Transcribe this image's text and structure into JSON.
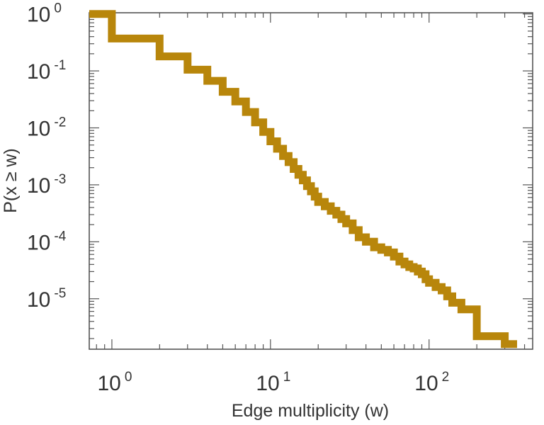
{
  "chart_data": {
    "type": "line",
    "style": "step",
    "xscale": "log",
    "yscale": "log",
    "xlim": [
      0.72,
      450
    ],
    "ylim": [
      1.3e-06,
      1.05
    ],
    "xlabel": "Edge multiplicity (w)",
    "ylabel": "P(x ≥ w)",
    "grid": false,
    "colors": {
      "series": "#b8860b",
      "axis": "#555555",
      "text": "#333333"
    },
    "x_ticks": [
      {
        "value": 1,
        "base": "10",
        "exp": "0"
      },
      {
        "value": 10,
        "base": "10",
        "exp": "1"
      },
      {
        "value": 100,
        "base": "10",
        "exp": "2"
      }
    ],
    "y_ticks": [
      {
        "value": 1,
        "base": "10",
        "exp": "0"
      },
      {
        "value": 0.1,
        "base": "10",
        "exp": "-1"
      },
      {
        "value": 0.01,
        "base": "10",
        "exp": "-2"
      },
      {
        "value": 0.001,
        "base": "10",
        "exp": "-3"
      },
      {
        "value": 0.0001,
        "base": "10",
        "exp": "-4"
      },
      {
        "value": 1e-05,
        "base": "10",
        "exp": "-5"
      }
    ],
    "series": [
      {
        "x": [
          0.72,
          1,
          2,
          3,
          4,
          5,
          6,
          7,
          8,
          9,
          10,
          11,
          12,
          13,
          14,
          15,
          16,
          17,
          18,
          19,
          20,
          22,
          24,
          26,
          28,
          30,
          33,
          36,
          40,
          45,
          50,
          55,
          60,
          65,
          70,
          75,
          80,
          85,
          90,
          95,
          100,
          110,
          120,
          130,
          140,
          160,
          200,
          300
        ],
        "y": [
          1,
          0.37,
          0.18,
          0.105,
          0.067,
          0.043,
          0.029,
          0.019,
          0.0125,
          0.0085,
          0.0058,
          0.0043,
          0.0032,
          0.0025,
          0.0019,
          0.0015,
          0.0012,
          0.00095,
          0.00077,
          0.00062,
          0.0005,
          0.00042,
          0.00035,
          0.0003,
          0.00025,
          0.00021,
          0.00016,
          0.00012,
          0.0001,
          8e-05,
          7.2e-05,
          6.5e-05,
          5.5e-05,
          4.5e-05,
          4e-05,
          3.6e-05,
          3.4e-05,
          3e-05,
          2.7e-05,
          2.2e-05,
          1.9e-05,
          1.6e-05,
          1.4e-05,
          1.1e-05,
          8.5e-06,
          6.5e-06,
          2.2e-06,
          1.6e-06
        ]
      }
    ]
  }
}
